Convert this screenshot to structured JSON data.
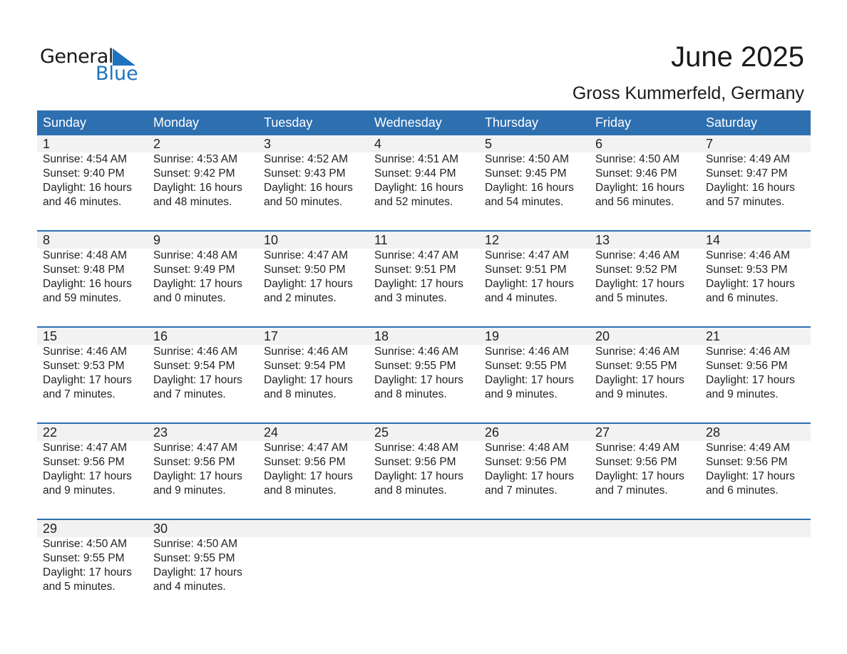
{
  "logo": {
    "word1": "General",
    "word2": "Blue",
    "accent": "#1e73be"
  },
  "title": "June 2025",
  "location": "Gross Kummerfeld, Germany",
  "colors": {
    "header_bg": "#2e6fb0",
    "band_bg": "#f2f2f2"
  },
  "weekdays": [
    "Sunday",
    "Monday",
    "Tuesday",
    "Wednesday",
    "Thursday",
    "Friday",
    "Saturday"
  ],
  "weeks": [
    [
      {
        "day": "1",
        "sunrise": "Sunrise: 4:54 AM",
        "sunset": "Sunset: 9:40 PM",
        "daylight": "Daylight: 16 hours",
        "minutes": "and 46 minutes."
      },
      {
        "day": "2",
        "sunrise": "Sunrise: 4:53 AM",
        "sunset": "Sunset: 9:42 PM",
        "daylight": "Daylight: 16 hours",
        "minutes": "and 48 minutes."
      },
      {
        "day": "3",
        "sunrise": "Sunrise: 4:52 AM",
        "sunset": "Sunset: 9:43 PM",
        "daylight": "Daylight: 16 hours",
        "minutes": "and 50 minutes."
      },
      {
        "day": "4",
        "sunrise": "Sunrise: 4:51 AM",
        "sunset": "Sunset: 9:44 PM",
        "daylight": "Daylight: 16 hours",
        "minutes": "and 52 minutes."
      },
      {
        "day": "5",
        "sunrise": "Sunrise: 4:50 AM",
        "sunset": "Sunset: 9:45 PM",
        "daylight": "Daylight: 16 hours",
        "minutes": "and 54 minutes."
      },
      {
        "day": "6",
        "sunrise": "Sunrise: 4:50 AM",
        "sunset": "Sunset: 9:46 PM",
        "daylight": "Daylight: 16 hours",
        "minutes": "and 56 minutes."
      },
      {
        "day": "7",
        "sunrise": "Sunrise: 4:49 AM",
        "sunset": "Sunset: 9:47 PM",
        "daylight": "Daylight: 16 hours",
        "minutes": "and 57 minutes."
      }
    ],
    [
      {
        "day": "8",
        "sunrise": "Sunrise: 4:48 AM",
        "sunset": "Sunset: 9:48 PM",
        "daylight": "Daylight: 16 hours",
        "minutes": "and 59 minutes."
      },
      {
        "day": "9",
        "sunrise": "Sunrise: 4:48 AM",
        "sunset": "Sunset: 9:49 PM",
        "daylight": "Daylight: 17 hours",
        "minutes": "and 0 minutes."
      },
      {
        "day": "10",
        "sunrise": "Sunrise: 4:47 AM",
        "sunset": "Sunset: 9:50 PM",
        "daylight": "Daylight: 17 hours",
        "minutes": "and 2 minutes."
      },
      {
        "day": "11",
        "sunrise": "Sunrise: 4:47 AM",
        "sunset": "Sunset: 9:51 PM",
        "daylight": "Daylight: 17 hours",
        "minutes": "and 3 minutes."
      },
      {
        "day": "12",
        "sunrise": "Sunrise: 4:47 AM",
        "sunset": "Sunset: 9:51 PM",
        "daylight": "Daylight: 17 hours",
        "minutes": "and 4 minutes."
      },
      {
        "day": "13",
        "sunrise": "Sunrise: 4:46 AM",
        "sunset": "Sunset: 9:52 PM",
        "daylight": "Daylight: 17 hours",
        "minutes": "and 5 minutes."
      },
      {
        "day": "14",
        "sunrise": "Sunrise: 4:46 AM",
        "sunset": "Sunset: 9:53 PM",
        "daylight": "Daylight: 17 hours",
        "minutes": "and 6 minutes."
      }
    ],
    [
      {
        "day": "15",
        "sunrise": "Sunrise: 4:46 AM",
        "sunset": "Sunset: 9:53 PM",
        "daylight": "Daylight: 17 hours",
        "minutes": "and 7 minutes."
      },
      {
        "day": "16",
        "sunrise": "Sunrise: 4:46 AM",
        "sunset": "Sunset: 9:54 PM",
        "daylight": "Daylight: 17 hours",
        "minutes": "and 7 minutes."
      },
      {
        "day": "17",
        "sunrise": "Sunrise: 4:46 AM",
        "sunset": "Sunset: 9:54 PM",
        "daylight": "Daylight: 17 hours",
        "minutes": "and 8 minutes."
      },
      {
        "day": "18",
        "sunrise": "Sunrise: 4:46 AM",
        "sunset": "Sunset: 9:55 PM",
        "daylight": "Daylight: 17 hours",
        "minutes": "and 8 minutes."
      },
      {
        "day": "19",
        "sunrise": "Sunrise: 4:46 AM",
        "sunset": "Sunset: 9:55 PM",
        "daylight": "Daylight: 17 hours",
        "minutes": "and 9 minutes."
      },
      {
        "day": "20",
        "sunrise": "Sunrise: 4:46 AM",
        "sunset": "Sunset: 9:55 PM",
        "daylight": "Daylight: 17 hours",
        "minutes": "and 9 minutes."
      },
      {
        "day": "21",
        "sunrise": "Sunrise: 4:46 AM",
        "sunset": "Sunset: 9:56 PM",
        "daylight": "Daylight: 17 hours",
        "minutes": "and 9 minutes."
      }
    ],
    [
      {
        "day": "22",
        "sunrise": "Sunrise: 4:47 AM",
        "sunset": "Sunset: 9:56 PM",
        "daylight": "Daylight: 17 hours",
        "minutes": "and 9 minutes."
      },
      {
        "day": "23",
        "sunrise": "Sunrise: 4:47 AM",
        "sunset": "Sunset: 9:56 PM",
        "daylight": "Daylight: 17 hours",
        "minutes": "and 9 minutes."
      },
      {
        "day": "24",
        "sunrise": "Sunrise: 4:47 AM",
        "sunset": "Sunset: 9:56 PM",
        "daylight": "Daylight: 17 hours",
        "minutes": "and 8 minutes."
      },
      {
        "day": "25",
        "sunrise": "Sunrise: 4:48 AM",
        "sunset": "Sunset: 9:56 PM",
        "daylight": "Daylight: 17 hours",
        "minutes": "and 8 minutes."
      },
      {
        "day": "26",
        "sunrise": "Sunrise: 4:48 AM",
        "sunset": "Sunset: 9:56 PM",
        "daylight": "Daylight: 17 hours",
        "minutes": "and 7 minutes."
      },
      {
        "day": "27",
        "sunrise": "Sunrise: 4:49 AM",
        "sunset": "Sunset: 9:56 PM",
        "daylight": "Daylight: 17 hours",
        "minutes": "and 7 minutes."
      },
      {
        "day": "28",
        "sunrise": "Sunrise: 4:49 AM",
        "sunset": "Sunset: 9:56 PM",
        "daylight": "Daylight: 17 hours",
        "minutes": "and 6 minutes."
      }
    ],
    [
      {
        "day": "29",
        "sunrise": "Sunrise: 4:50 AM",
        "sunset": "Sunset: 9:55 PM",
        "daylight": "Daylight: 17 hours",
        "minutes": "and 5 minutes."
      },
      {
        "day": "30",
        "sunrise": "Sunrise: 4:50 AM",
        "sunset": "Sunset: 9:55 PM",
        "daylight": "Daylight: 17 hours",
        "minutes": "and 4 minutes."
      },
      null,
      null,
      null,
      null,
      null
    ]
  ]
}
